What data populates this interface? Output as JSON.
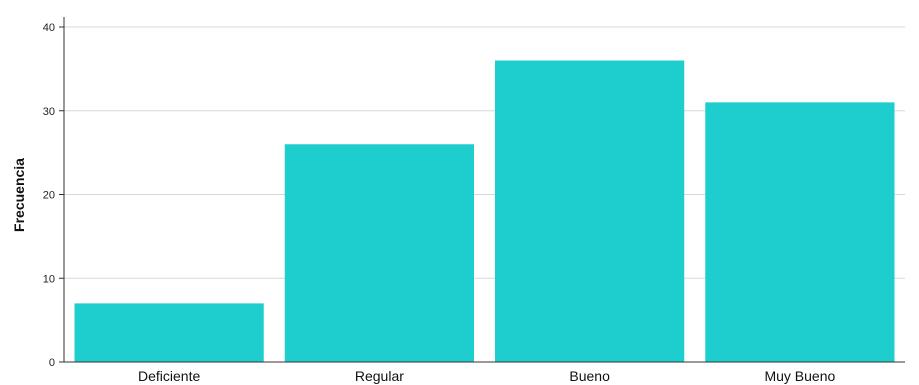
{
  "chart_data": {
    "type": "bar",
    "categories": [
      "Deficiente",
      "Regular",
      "Bueno",
      "Muy Bueno"
    ],
    "values": [
      7,
      26,
      36,
      31
    ],
    "title": "",
    "xlabel": "",
    "ylabel": "Frecuencia",
    "ylim": [
      0,
      40
    ],
    "yticks": [
      0,
      10,
      20,
      30,
      40
    ],
    "grid": true,
    "bar_color": "#1ecece"
  }
}
